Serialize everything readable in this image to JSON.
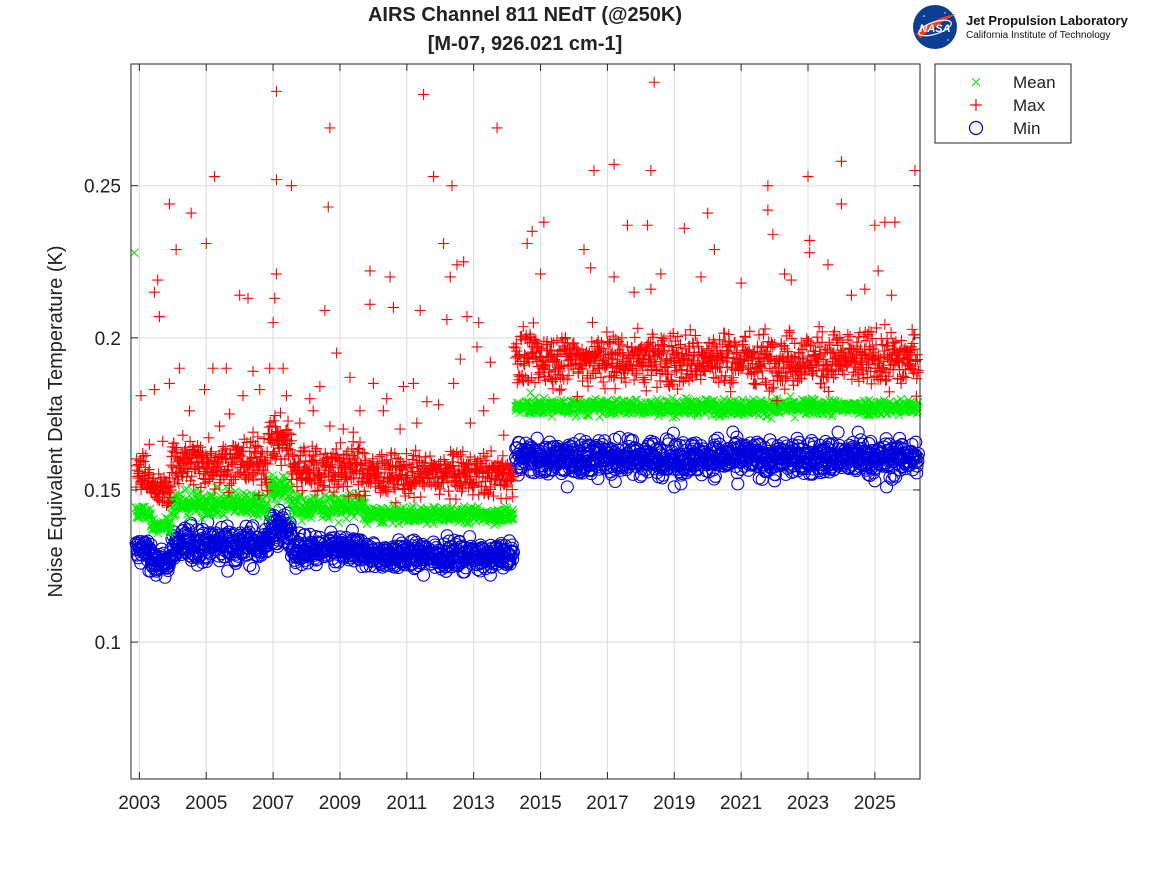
{
  "header": {
    "title_line1": "AIRS Channel 811 NEdT (@250K)",
    "title_line2": "[M-07, 926.021 cm-1]"
  },
  "logo": {
    "agency_mark": "NASA",
    "lab_name": "Jet Propulsion Laboratory",
    "institute": "California Institute of Technology"
  },
  "chart_data": {
    "type": "scatter",
    "title": "AIRS Channel 811 NEdT (@250K) [M-07, 926.021 cm-1]",
    "xlabel": "",
    "ylabel": "Noise Equivalent Delta Temperature (K)",
    "xlim": [
      2002.75,
      2026.35
    ],
    "ylim": [
      0.055,
      0.29
    ],
    "xticks": [
      2003,
      2005,
      2007,
      2009,
      2011,
      2013,
      2015,
      2017,
      2019,
      2021,
      2023,
      2025
    ],
    "xtick_labels": [
      "2003",
      "2005",
      "2007",
      "2009",
      "2011",
      "2013",
      "2015",
      "2017",
      "2019",
      "2021",
      "2023",
      "2025"
    ],
    "yticks": [
      0.1,
      0.15,
      0.2,
      0.25
    ],
    "ytick_labels": [
      "0.1",
      "0.15",
      "0.2",
      "0.25"
    ],
    "grid": true,
    "legend_position": "outside-top-right",
    "series": [
      {
        "name": "Mean",
        "marker": "x",
        "color": "#00ee00",
        "segments": [
          {
            "from": 2002.9,
            "to": 2003.35,
            "level": 0.1425,
            "spread": 0.0015
          },
          {
            "from": 2003.35,
            "to": 2003.95,
            "level": 0.1385,
            "spread": 0.0012
          },
          {
            "from": 2003.95,
            "to": 2006.85,
            "level": 0.1455,
            "spread": 0.002
          },
          {
            "from": 2006.85,
            "to": 2007.55,
            "level": 0.1505,
            "spread": 0.0025
          },
          {
            "from": 2007.55,
            "to": 2009.75,
            "level": 0.1445,
            "spread": 0.002
          },
          {
            "from": 2009.75,
            "to": 2014.2,
            "level": 0.1418,
            "spread": 0.0013
          },
          {
            "from": 2014.25,
            "to": 2026.3,
            "level": 0.1772,
            "spread": 0.0013
          }
        ],
        "outliers": [
          [
            2002.85,
            0.228
          ],
          [
            2014.7,
            0.182
          ],
          [
            2005.6,
            0.151
          ],
          [
            2009.3,
            0.149
          ]
        ]
      },
      {
        "name": "Max",
        "marker": "+",
        "color": "#ff0000",
        "segments": [
          {
            "from": 2002.9,
            "to": 2003.35,
            "level": 0.155,
            "spread": 0.003
          },
          {
            "from": 2003.35,
            "to": 2003.95,
            "level": 0.15,
            "spread": 0.0025
          },
          {
            "from": 2003.95,
            "to": 2006.85,
            "level": 0.159,
            "spread": 0.004
          },
          {
            "from": 2006.85,
            "to": 2007.55,
            "level": 0.166,
            "spread": 0.004
          },
          {
            "from": 2007.55,
            "to": 2009.75,
            "level": 0.157,
            "spread": 0.004
          },
          {
            "from": 2009.75,
            "to": 2014.2,
            "level": 0.155,
            "spread": 0.0035
          },
          {
            "from": 2014.25,
            "to": 2026.3,
            "level": 0.193,
            "spread": 0.0045
          }
        ],
        "outliers": [
          [
            2007.1,
            0.281
          ],
          [
            2011.5,
            0.28
          ],
          [
            2018.4,
            0.284
          ],
          [
            2008.7,
            0.269
          ],
          [
            2013.7,
            0.269
          ],
          [
            2007.1,
            0.252
          ],
          [
            2007.55,
            0.25
          ],
          [
            2012.35,
            0.25
          ],
          [
            2011.8,
            0.253
          ],
          [
            2005.25,
            0.253
          ],
          [
            2016.6,
            0.255
          ],
          [
            2017.2,
            0.257
          ],
          [
            2018.3,
            0.255
          ],
          [
            2026.2,
            0.255
          ],
          [
            2024.0,
            0.258
          ],
          [
            2023.0,
            0.253
          ],
          [
            2021.8,
            0.25
          ],
          [
            2003.9,
            0.244
          ],
          [
            2004.55,
            0.241
          ],
          [
            2008.65,
            0.243
          ],
          [
            2024.0,
            0.244
          ],
          [
            2025.6,
            0.238
          ],
          [
            2025.3,
            0.238
          ],
          [
            2025.0,
            0.237
          ],
          [
            2021.8,
            0.242
          ],
          [
            2020.0,
            0.241
          ],
          [
            2017.6,
            0.237
          ],
          [
            2018.2,
            0.237
          ],
          [
            2015.1,
            0.238
          ],
          [
            2014.75,
            0.235
          ],
          [
            2005.0,
            0.231
          ],
          [
            2004.1,
            0.229
          ],
          [
            2012.1,
            0.231
          ],
          [
            2014.6,
            0.231
          ],
          [
            2019.3,
            0.236
          ],
          [
            2023.05,
            0.232
          ],
          [
            2021.95,
            0.234
          ],
          [
            2016.3,
            0.229
          ],
          [
            2020.2,
            0.229
          ],
          [
            2023.05,
            0.228
          ],
          [
            2012.7,
            0.225
          ],
          [
            2012.5,
            0.224
          ],
          [
            2015.0,
            0.221
          ],
          [
            2016.5,
            0.223
          ],
          [
            2017.2,
            0.22
          ],
          [
            2019.8,
            0.22
          ],
          [
            2022.3,
            0.221
          ],
          [
            2023.6,
            0.224
          ],
          [
            2025.1,
            0.222
          ],
          [
            2012.3,
            0.22
          ],
          [
            2007.1,
            0.221
          ],
          [
            2009.9,
            0.222
          ],
          [
            2010.5,
            0.22
          ],
          [
            2003.55,
            0.219
          ],
          [
            2003.45,
            0.215
          ],
          [
            2003.6,
            0.207
          ],
          [
            2006.0,
            0.214
          ],
          [
            2006.25,
            0.213
          ],
          [
            2007.05,
            0.213
          ],
          [
            2007.0,
            0.205
          ],
          [
            2008.55,
            0.209
          ],
          [
            2009.9,
            0.211
          ],
          [
            2010.6,
            0.21
          ],
          [
            2011.4,
            0.209
          ],
          [
            2012.2,
            0.206
          ],
          [
            2012.8,
            0.207
          ],
          [
            2013.15,
            0.205
          ],
          [
            2021.0,
            0.218
          ],
          [
            2022.5,
            0.219
          ],
          [
            2024.3,
            0.214
          ],
          [
            2024.7,
            0.216
          ],
          [
            2025.5,
            0.214
          ],
          [
            2018.6,
            0.221
          ],
          [
            2018.3,
            0.216
          ],
          [
            2017.8,
            0.215
          ],
          [
            2014.2,
            0.197
          ],
          [
            2013.5,
            0.192
          ],
          [
            2013.1,
            0.197
          ],
          [
            2012.6,
            0.193
          ],
          [
            2008.9,
            0.195
          ],
          [
            2007.3,
            0.19
          ],
          [
            2006.9,
            0.19
          ],
          [
            2006.4,
            0.189
          ],
          [
            2005.2,
            0.19
          ],
          [
            2005.6,
            0.19
          ],
          [
            2004.2,
            0.19
          ],
          [
            2003.9,
            0.185
          ],
          [
            2003.45,
            0.183
          ],
          [
            2003.05,
            0.181
          ],
          [
            2004.95,
            0.183
          ],
          [
            2008.1,
            0.18
          ],
          [
            2008.4,
            0.184
          ],
          [
            2009.3,
            0.187
          ],
          [
            2010.0,
            0.185
          ],
          [
            2010.4,
            0.18
          ],
          [
            2010.9,
            0.184
          ],
          [
            2011.2,
            0.185
          ],
          [
            2011.6,
            0.179
          ],
          [
            2012.4,
            0.185
          ],
          [
            2013.6,
            0.18
          ],
          [
            2006.1,
            0.181
          ],
          [
            2006.6,
            0.183
          ],
          [
            2007.4,
            0.181
          ],
          [
            2008.2,
            0.176
          ],
          [
            2009.6,
            0.176
          ],
          [
            2004.5,
            0.176
          ],
          [
            2005.7,
            0.175
          ],
          [
            2010.3,
            0.176
          ],
          [
            2011.95,
            0.178
          ],
          [
            2013.3,
            0.176
          ],
          [
            2012.9,
            0.172
          ],
          [
            2008.7,
            0.171
          ],
          [
            2009.1,
            0.17
          ],
          [
            2005.4,
            0.171
          ],
          [
            2007.8,
            0.172
          ],
          [
            2010.8,
            0.17
          ],
          [
            2006.4,
            0.169
          ],
          [
            2004.3,
            0.168
          ],
          [
            2011.3,
            0.172
          ],
          [
            2009.4,
            0.169
          ],
          [
            2003.3,
            0.165
          ],
          [
            2003.1,
            0.162
          ],
          [
            2013.9,
            0.168
          ],
          [
            2003.7,
            0.166
          ]
        ]
      },
      {
        "name": "Min",
        "marker": "o",
        "color": "#0000dd",
        "segments": [
          {
            "from": 2002.9,
            "to": 2003.35,
            "level": 0.13,
            "spread": 0.0025
          },
          {
            "from": 2003.35,
            "to": 2003.95,
            "level": 0.126,
            "spread": 0.002
          },
          {
            "from": 2003.95,
            "to": 2006.85,
            "level": 0.132,
            "spread": 0.003
          },
          {
            "from": 2006.85,
            "to": 2007.55,
            "level": 0.137,
            "spread": 0.003
          },
          {
            "from": 2007.55,
            "to": 2009.75,
            "level": 0.13,
            "spread": 0.0025
          },
          {
            "from": 2009.75,
            "to": 2014.2,
            "level": 0.1285,
            "spread": 0.0022
          },
          {
            "from": 2014.25,
            "to": 2026.3,
            "level": 0.1605,
            "spread": 0.0028
          }
        ],
        "outliers": [
          [
            2014.9,
            0.167
          ],
          [
            2023.9,
            0.169
          ],
          [
            2024.5,
            0.169
          ],
          [
            2020.3,
            0.167
          ],
          [
            2018.3,
            0.166
          ],
          [
            2015.8,
            0.151
          ],
          [
            2019.0,
            0.151
          ],
          [
            2019.2,
            0.152
          ],
          [
            2025.35,
            0.151
          ],
          [
            2022.0,
            0.153
          ],
          [
            2025.0,
            0.153
          ],
          [
            2020.9,
            0.152
          ],
          [
            2013.5,
            0.122
          ],
          [
            2011.5,
            0.122
          ],
          [
            2003.5,
            0.122
          ]
        ]
      }
    ]
  },
  "style": {
    "axis_color": "#262626",
    "grid_color": "#dcdcdc",
    "text_color": "#222222"
  }
}
